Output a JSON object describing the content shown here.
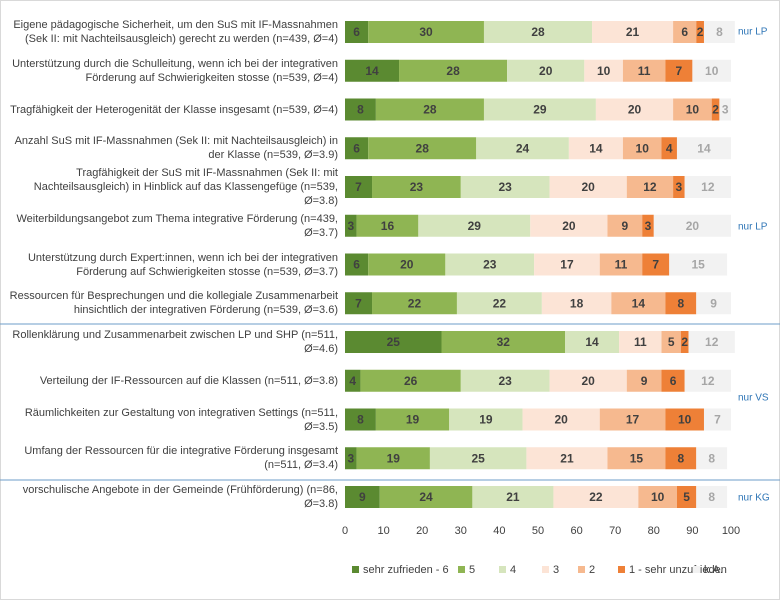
{
  "chart_data": {
    "type": "stacked-bar-horizontal",
    "categories": [
      "Eigene pädagogische Sicherheit, um den SuS mit IF-Massnahmen (Sek II: mit Nachteilsausgleich) gerecht zu werden (n=439, Ø=4)",
      "Unterstützung durch die Schulleitung, wenn ich bei der integrativen Förderung auf Schwierigkeiten stosse (n=539, Ø=4)",
      "Tragfähigkeit der Heterogenität der Klasse insgesamt (n=539, Ø=4)",
      "Anzahl SuS mit IF-Massnahmen (Sek II: mit Nachteilsausgleich) in der Klasse (n=539, Ø=3.9)",
      "Tragfähigkeit der SuS mit IF-Massnahmen (Sek II: mit Nachteilsausgleich) in Hinblick auf das Klassengefüge (n=539, Ø=3.8)",
      "Weiterbildungsangebot zum Thema integrative Förderung (n=439, Ø=3.7)",
      "Unterstützung durch Expert:innen, wenn ich bei der integrativen Förderung auf Schwierigkeiten stosse (n=539, Ø=3.7)",
      "Ressourcen für Besprechungen und die kollegiale Zusammenarbeit hinsichtlich der integrativen Förderung (n=539, Ø=3.6)",
      "Rollenklärung und Zusammenarbeit zwischen LP und SHP (n=511, Ø=4.6)",
      "Verteilung der IF-Ressourcen auf die Klassen (n=511, Ø=3.8)",
      "Räumlichkeiten zur Gestaltung von integrativen Settings (n=511, Ø=3.5)",
      "Umfang der Ressourcen für die integrative Förderung insgesamt (n=511, Ø=3.4)",
      "vorschulische Angebote in der Gemeinde (Frühförderung) (n=86, Ø=3.8)"
    ],
    "series": [
      {
        "name": "sehr zufrieden - 6",
        "color": "#5b8a31",
        "values": [
          6,
          14,
          8,
          6,
          7,
          3,
          6,
          7,
          25,
          4,
          8,
          3,
          9
        ]
      },
      {
        "name": "5",
        "color": "#8fb553",
        "values": [
          30,
          28,
          28,
          28,
          23,
          16,
          20,
          22,
          32,
          26,
          19,
          19,
          24
        ]
      },
      {
        "name": "4",
        "color": "#d6e5bd",
        "values": [
          28,
          20,
          29,
          24,
          23,
          29,
          23,
          22,
          14,
          23,
          19,
          25,
          21
        ]
      },
      {
        "name": "3",
        "color": "#fce4d6",
        "values": [
          21,
          10,
          20,
          14,
          20,
          20,
          17,
          18,
          11,
          20,
          20,
          21,
          22
        ]
      },
      {
        "name": "2",
        "color": "#f6b98f",
        "values": [
          6,
          11,
          10,
          10,
          12,
          9,
          11,
          14,
          5,
          9,
          17,
          15,
          10
        ]
      },
      {
        "name": "1 - sehr unzufrieden",
        "color": "#ee8037",
        "values": [
          2,
          7,
          2,
          4,
          3,
          3,
          7,
          8,
          2,
          6,
          10,
          8,
          5
        ]
      },
      {
        "name": "k.A.",
        "color": "#f2f2f2",
        "values": [
          8,
          10,
          3,
          14,
          12,
          20,
          15,
          9,
          12,
          12,
          7,
          8,
          8
        ]
      }
    ],
    "xlim": [
      0,
      100
    ],
    "xticks": [
      0,
      10,
      20,
      30,
      40,
      50,
      60,
      70,
      80,
      90,
      100
    ],
    "annotations": [
      "nur LP",
      "nur LP",
      "nur VS",
      "nur KG"
    ]
  }
}
